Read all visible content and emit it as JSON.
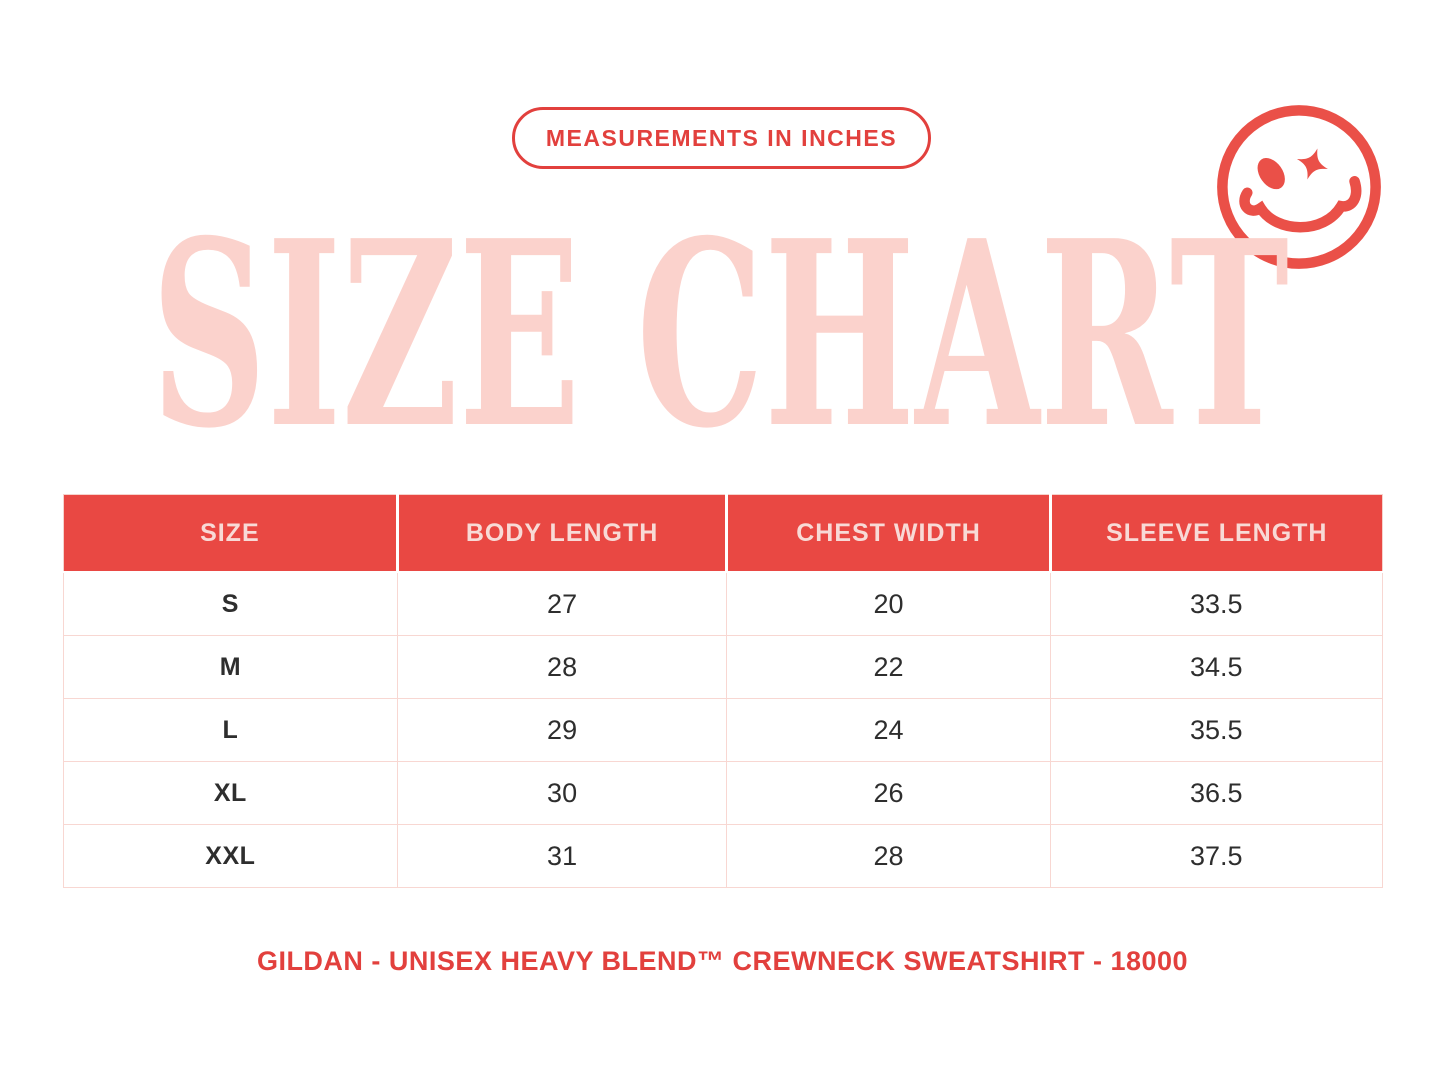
{
  "badge": {
    "label": "MEASUREMENTS IN INCHES"
  },
  "title": "SIZE CHART",
  "icons": {
    "smiley": "winking-smiley-face-icon"
  },
  "colors": {
    "accent_red": "#e2403d",
    "header_red": "#e94843",
    "smiley_red": "#ea5048",
    "title_pink": "#fbd2cc",
    "border_pink": "#f8d7d2",
    "header_text": "#f8dad6",
    "cell_text": "#2e2e2e",
    "background": "#ffffff"
  },
  "chart_data": {
    "type": "table",
    "title": "SIZE CHART",
    "subtitle": "MEASUREMENTS IN INCHES",
    "units": "inches",
    "columns": [
      "SIZE",
      "BODY LENGTH",
      "CHEST WIDTH",
      "SLEEVE LENGTH"
    ],
    "rows": [
      [
        "S",
        "27",
        "20",
        "33.5"
      ],
      [
        "M",
        "28",
        "22",
        "34.5"
      ],
      [
        "L",
        "29",
        "24",
        "35.5"
      ],
      [
        "XL",
        "30",
        "26",
        "36.5"
      ],
      [
        "XXL",
        "31",
        "28",
        "37.5"
      ]
    ],
    "caption": "GILDAN - UNISEX HEAVY BLEND™ CREWNECK SWEATSHIRT - 18000"
  },
  "footer": {
    "label": "GILDAN - UNISEX HEAVY BLEND™ CREWNECK SWEATSHIRT - 18000"
  }
}
